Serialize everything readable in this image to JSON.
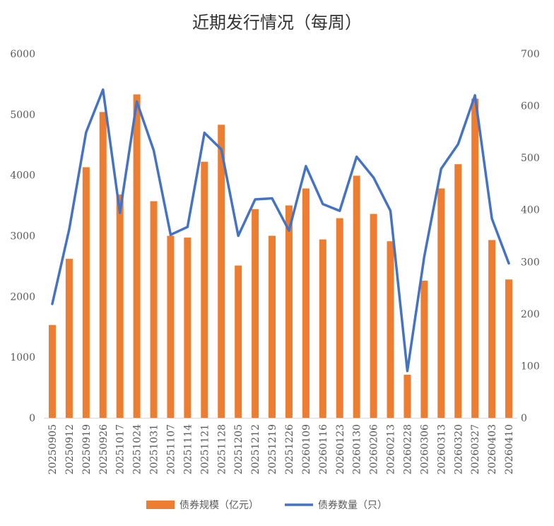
{
  "chart_data": {
    "type": "bar+line",
    "title": "近期发行情况（每周）",
    "categories": [
      "20250905",
      "20250912",
      "20250919",
      "20250926",
      "20251017",
      "20251024",
      "20251031",
      "20251107",
      "20251114",
      "20251121",
      "20251128",
      "20251205",
      "20251212",
      "20251219",
      "20251226",
      "20260109",
      "20260116",
      "20260123",
      "20260130",
      "20260206",
      "20260213",
      "20260228",
      "20260306",
      "20260313",
      "20260320",
      "20260327",
      "20260403",
      "20260410"
    ],
    "series": [
      {
        "name": "债券规模（亿元）",
        "type": "bar",
        "axis": "left",
        "color": "#ED7D31",
        "values": [
          1530,
          2620,
          4130,
          5040,
          3680,
          5330,
          3570,
          3000,
          2970,
          4220,
          4830,
          2510,
          3440,
          3000,
          3500,
          3780,
          2940,
          3290,
          3990,
          3360,
          2910,
          710,
          2260,
          3780,
          4180,
          5260,
          2930,
          2280
        ]
      },
      {
        "name": "债券数量（只）",
        "type": "line",
        "axis": "right",
        "color": "#4472C4",
        "values": [
          219,
          362,
          549,
          631,
          394,
          608,
          514,
          352,
          367,
          548,
          516,
          350,
          420,
          422,
          360,
          484,
          411,
          398,
          502,
          462,
          398,
          90,
          310,
          479,
          526,
          620,
          383,
          297
        ]
      }
    ],
    "y_left": {
      "min": 0,
      "max": 6000,
      "ticks": [
        "0",
        "1000",
        "2000",
        "3000",
        "4000",
        "5000",
        "6000"
      ]
    },
    "y_right": {
      "min": 0,
      "max": 700,
      "ticks": [
        "0",
        "100",
        "200",
        "300",
        "400",
        "500",
        "600",
        "700"
      ]
    },
    "grid": false,
    "legend_position": "bottom"
  }
}
